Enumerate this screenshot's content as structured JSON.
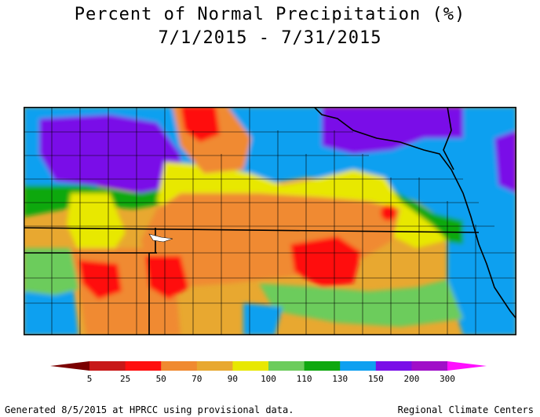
{
  "title_line1": "Percent of Normal Precipitation (%)",
  "title_line2": "7/1/2015 - 7/31/2015",
  "legend": {
    "labels": [
      "5",
      "25",
      "50",
      "70",
      "90",
      "100",
      "110",
      "130",
      "150",
      "200",
      "300"
    ],
    "colors": [
      "#7a0000",
      "#c81818",
      "#ff1010",
      "#f08a30",
      "#e8a830",
      "#e8e800",
      "#6ccc5c",
      "#10a810",
      "#10a0f0",
      "#7a10e8",
      "#a010c8",
      "#ff10ff"
    ]
  },
  "footer_left": "Generated 8/5/2015 at HPRCC using provisional data.",
  "footer_right": "Regional Climate Centers",
  "map_colors": {
    "background": "#e8a830",
    "deficit_dark": "#f08a30",
    "deficit_red": "#ff1010",
    "near_normal": "#e8e800",
    "light_green": "#6ccc5c",
    "green": "#10a810",
    "blue": "#10a0f0",
    "purple": "#7a10e8",
    "border": "#000000"
  }
}
